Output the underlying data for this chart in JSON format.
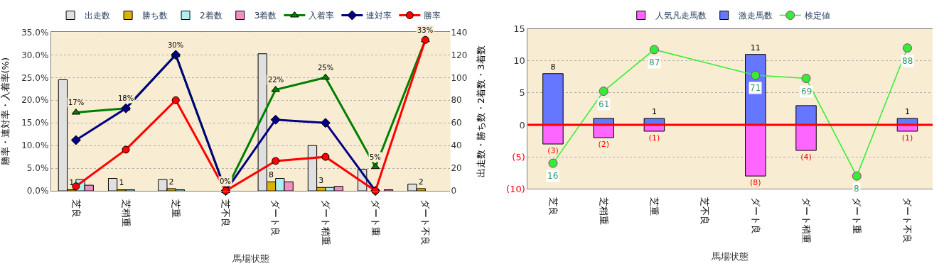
{
  "chart_data": [
    {
      "type": "bar",
      "xlabel": "馬場状態",
      "ylabel": "勝率・連対率・入着率(%)",
      "y2label": "出走数・勝ち数・2着数・3着数",
      "categories": [
        "芝良",
        "芝稍重",
        "芝重",
        "芝不良",
        "ダート良",
        "ダート稍重",
        "ダート重",
        "ダート不良"
      ],
      "series": [
        {
          "name": "出走数",
          "color": "#e0e0e0",
          "axis": "y2",
          "values": [
            98,
            11,
            10,
            0,
            121,
            40,
            19,
            6
          ]
        },
        {
          "name": "勝ち数",
          "color": "#e0b000",
          "axis": "y2",
          "values": [
            1,
            1,
            2,
            0,
            8,
            3,
            0,
            2
          ],
          "value_labels": [
            "1",
            "1",
            "2",
            null,
            "8",
            "3",
            null,
            "2"
          ]
        },
        {
          "name": "2着数",
          "color": "#b0eef0",
          "axis": "y2",
          "values": [
            10,
            1,
            1,
            0,
            11,
            3,
            0,
            0
          ]
        },
        {
          "name": "3着数",
          "color": "#f090c0",
          "axis": "y2",
          "values": [
            5,
            0,
            0,
            0,
            8,
            4,
            1,
            0
          ]
        },
        {
          "name": "入着率",
          "type": "line",
          "color": "#008000",
          "marker": "triangle",
          "values": [
            17.3,
            18.2,
            30,
            0,
            22.3,
            25,
            5.3,
            33.3
          ],
          "value_labels": [
            "17%",
            "18%",
            "30%",
            "0%",
            "22%",
            "25%",
            "5%",
            "33%"
          ]
        },
        {
          "name": "連対率",
          "type": "line",
          "color": "#000080",
          "marker": "diamond",
          "values": [
            11.2,
            18.2,
            30,
            0,
            15.7,
            15,
            0,
            null
          ]
        },
        {
          "name": "勝率",
          "type": "line",
          "color": "#ff0000",
          "marker": "circle",
          "values": [
            1.0,
            9.1,
            20,
            0,
            6.6,
            7.5,
            0,
            33.3
          ]
        }
      ],
      "ylim": [
        0,
        35
      ],
      "yticks": [
        {
          "value": 0,
          "label": "0.0%"
        },
        {
          "value": 5,
          "label": "5.0%"
        },
        {
          "value": 10,
          "label": "10.0%"
        },
        {
          "value": 15,
          "label": "15.0%"
        },
        {
          "value": 20,
          "label": "20.0%"
        },
        {
          "value": 25,
          "label": "25.0%"
        },
        {
          "value": 30,
          "label": "30.0%"
        },
        {
          "value": 35,
          "label": "35.0%"
        }
      ],
      "y2lim": [
        0,
        140
      ],
      "y2ticks": [
        0,
        20,
        40,
        60,
        80,
        100,
        120,
        140
      ],
      "grid": true,
      "legend": "top"
    },
    {
      "type": "bar",
      "stacked": true,
      "xlabel": "馬場状態",
      "categories": [
        "芝良",
        "芝稍重",
        "芝重",
        "芝不良",
        "ダート良",
        "ダート稍重",
        "ダート重",
        "ダート不良"
      ],
      "series": [
        {
          "name": "人気凡走馬数",
          "color": "#ff66ff",
          "values": [
            -3,
            -2,
            -1,
            0,
            -8,
            -4,
            0,
            -1
          ],
          "value_labels": [
            "(3)",
            "(2)",
            "(1)",
            null,
            "(8)",
            "(4)",
            null,
            "(1)"
          ]
        },
        {
          "name": "激走馬数",
          "color": "#6677ff",
          "values": [
            8,
            1,
            1,
            0,
            11,
            3,
            0,
            1
          ],
          "value_labels": [
            "8",
            null,
            "1",
            null,
            "11",
            null,
            null,
            "1"
          ]
        },
        {
          "name": "検定値",
          "type": "line",
          "axis": "y2",
          "color": "#33ee33",
          "marker": "circle",
          "values": [
            16,
            61,
            87,
            null,
            71,
            69,
            8,
            88
          ],
          "value_labels": [
            "16",
            "61",
            "87",
            null,
            "71",
            "69",
            "8",
            "88"
          ]
        }
      ],
      "ylim": [
        -10,
        15
      ],
      "yticks": [
        {
          "value": -10,
          "label": "(10)"
        },
        {
          "value": -5,
          "label": "(5)"
        },
        0,
        5,
        10,
        15
      ],
      "y2lim": [
        0,
        100
      ],
      "ref_lines": [
        {
          "axis": "y",
          "value": 0,
          "color": "#ff0000"
        }
      ],
      "grid": true,
      "legend": "top"
    }
  ]
}
